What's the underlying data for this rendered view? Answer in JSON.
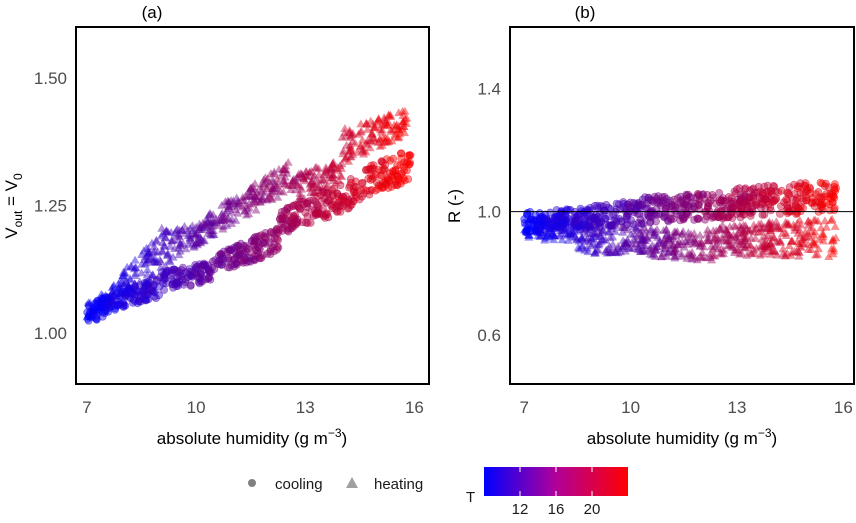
{
  "chart_data": [
    {
      "type": "scatter",
      "panel_label": "(a)",
      "xlabel": "absolute humidity (g m",
      "xlabel_sup": "−3",
      "xlabel_close": ")",
      "ylabel_main": "V",
      "ylabel_sub1": "out",
      "ylabel_mid": " = V",
      "ylabel_sub2": "0",
      "xlim": [
        6.7,
        16.4
      ],
      "ylim": [
        0.9,
        1.6
      ],
      "xticks": [
        7,
        10,
        13,
        16
      ],
      "xtick_labels": [
        "7",
        "10",
        "13",
        "16"
      ],
      "yticks": [
        1.0,
        1.25,
        1.5
      ],
      "ytick_labels": [
        "1.00",
        "1.25",
        "1.50"
      ],
      "grid": false,
      "series": [
        {
          "name": "heating",
          "marker": "triangle",
          "bands": [
            {
              "x": [
                7.0,
                7.5
              ],
              "y_low": [
                1.02,
                1.05
              ],
              "y_high": [
                1.06,
                1.08
              ]
            },
            {
              "x": [
                7.5,
                9.2
              ],
              "y_low": [
                1.05,
                1.13
              ],
              "y_high": [
                1.08,
                1.22
              ]
            },
            {
              "x": [
                9.2,
                10.2
              ],
              "y_low": [
                1.13,
                1.18
              ],
              "y_high": [
                1.2,
                1.22
              ]
            },
            {
              "x": [
                10.2,
                12.6
              ],
              "y_low": [
                1.18,
                1.28
              ],
              "y_high": [
                1.23,
                1.34
              ]
            },
            {
              "x": [
                12.6,
                14.0
              ],
              "y_low": [
                1.25,
                1.3
              ],
              "y_high": [
                1.31,
                1.34
              ]
            },
            {
              "x": [
                14.0,
                15.8
              ],
              "y_low": [
                1.33,
                1.39
              ],
              "y_high": [
                1.4,
                1.44
              ]
            }
          ]
        },
        {
          "name": "cooling",
          "marker": "circle",
          "bands": [
            {
              "x": [
                7.0,
                7.5
              ],
              "y_low": [
                1.02,
                1.03
              ],
              "y_high": [
                1.06,
                1.07
              ]
            },
            {
              "x": [
                7.5,
                9.0
              ],
              "y_low": [
                1.04,
                1.07
              ],
              "y_high": [
                1.07,
                1.11
              ]
            },
            {
              "x": [
                9.0,
                10.4
              ],
              "y_low": [
                1.08,
                1.1
              ],
              "y_high": [
                1.12,
                1.14
              ]
            },
            {
              "x": [
                10.4,
                12.3
              ],
              "y_low": [
                1.11,
                1.16
              ],
              "y_high": [
                1.15,
                1.21
              ]
            },
            {
              "x": [
                12.3,
                14.5
              ],
              "y_low": [
                1.19,
                1.25
              ],
              "y_high": [
                1.24,
                1.31
              ]
            },
            {
              "x": [
                14.5,
                15.9
              ],
              "y_low": [
                1.26,
                1.3
              ],
              "y_high": [
                1.32,
                1.36
              ]
            }
          ]
        }
      ]
    },
    {
      "type": "scatter",
      "panel_label": "(b)",
      "xlabel": "absolute humidity (g m",
      "xlabel_sup": "−3",
      "xlabel_close": ")",
      "ylabel": "R (-)",
      "xlim": [
        6.6,
        16.3
      ],
      "ylim": [
        0.44,
        1.6
      ],
      "xticks": [
        7,
        10,
        13,
        16
      ],
      "xtick_labels": [
        "7",
        "10",
        "13",
        "16"
      ],
      "yticks": [
        0.6,
        1.0,
        1.4
      ],
      "ytick_labels": [
        "0.6",
        "1.0",
        "1.4"
      ],
      "hline": 1.0,
      "grid": false,
      "series": [
        {
          "name": "cooling",
          "marker": "circle",
          "bands": [
            {
              "x": [
                7.0,
                8.5
              ],
              "y_low": [
                0.93,
                0.95
              ],
              "y_high": [
                1.0,
                1.01
              ]
            },
            {
              "x": [
                8.5,
                10.5
              ],
              "y_low": [
                0.94,
                0.96
              ],
              "y_high": [
                1.01,
                1.05
              ]
            },
            {
              "x": [
                10.5,
                13.0
              ],
              "y_low": [
                0.96,
                0.98
              ],
              "y_high": [
                1.05,
                1.07
              ]
            },
            {
              "x": [
                13.0,
                15.8
              ],
              "y_low": [
                0.98,
                1.0
              ],
              "y_high": [
                1.08,
                1.1
              ]
            }
          ]
        },
        {
          "name": "heating",
          "marker": "triangle",
          "bands": [
            {
              "x": [
                7.0,
                8.5
              ],
              "y_low": [
                0.91,
                0.9
              ],
              "y_high": [
                0.98,
                0.98
              ]
            },
            {
              "x": [
                8.5,
                10.5
              ],
              "y_low": [
                0.86,
                0.87
              ],
              "y_high": [
                0.96,
                0.95
              ]
            },
            {
              "x": [
                10.5,
                12.5
              ],
              "y_low": [
                0.85,
                0.84
              ],
              "y_high": [
                0.95,
                0.94
              ]
            },
            {
              "x": [
                12.5,
                15.8
              ],
              "y_low": [
                0.86,
                0.85
              ],
              "y_high": [
                0.96,
                0.98
              ]
            }
          ]
        }
      ]
    }
  ],
  "legend": {
    "shape_items": [
      {
        "label": "cooling",
        "marker": "circle"
      },
      {
        "label": "heating",
        "marker": "triangle"
      }
    ],
    "colorbar": {
      "title": "T",
      "range": [
        8,
        24
      ],
      "ticks": [
        12,
        16,
        20
      ],
      "tick_labels": [
        "12",
        "16",
        "20"
      ],
      "low_color": "#0000ff",
      "high_color": "#ff0000"
    },
    "marker_color": "#808080"
  },
  "colors": {
    "axis": "#000000",
    "tick_text": "#4d4d4d"
  }
}
